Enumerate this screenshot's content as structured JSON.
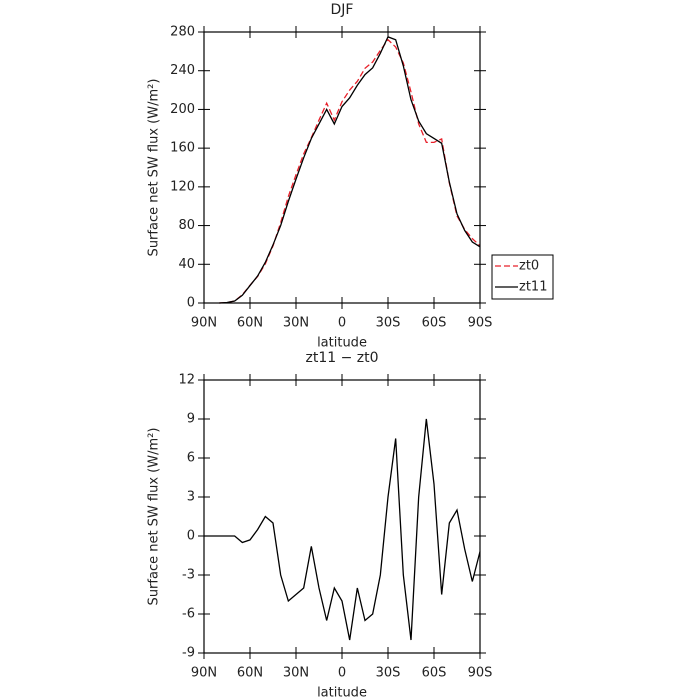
{
  "chart_data": [
    {
      "type": "line",
      "title": "DJF",
      "x_label": "latitude",
      "y_label": "Surface net SW flux (W/m²)",
      "x": [
        90,
        85,
        80,
        75,
        70,
        65,
        60,
        55,
        50,
        45,
        40,
        35,
        30,
        25,
        20,
        15,
        10,
        5,
        0,
        -5,
        -10,
        -15,
        -20,
        -25,
        -30,
        -35,
        -40,
        -45,
        -50,
        -55,
        -60,
        -65,
        -70,
        -75,
        -80,
        -85,
        -90
      ],
      "series": [
        {
          "name": "zt0",
          "color": "#e8202a",
          "dash": "dashed",
          "values": [
            null,
            null,
            0,
            0.5,
            2,
            8.5,
            18.3,
            27.5,
            40.5,
            59,
            83,
            110,
            132.5,
            154,
            170.8,
            189,
            206.5,
            189,
            208,
            220,
            229,
            242.5,
            249,
            261,
            272,
            264.5,
            248,
            218,
            185,
            166,
            166,
            169.5,
            124,
            90,
            76,
            66.5,
            59.2
          ]
        },
        {
          "name": "zt11",
          "color": "#000000",
          "dash": "solid",
          "values": [
            null,
            null,
            0,
            0.5,
            2,
            8,
            18,
            28,
            42,
            60,
            80,
            105,
            128,
            150,
            170,
            185,
            200,
            185,
            203,
            212,
            225,
            236,
            243,
            258,
            275,
            272,
            245,
            210,
            188,
            175,
            170,
            165,
            125,
            92,
            75,
            63,
            58
          ]
        }
      ],
      "xlim": [
        90,
        -90
      ],
      "xticks": [
        {
          "value": 90,
          "label": "90N"
        },
        {
          "value": 60,
          "label": "60N"
        },
        {
          "value": 30,
          "label": "30N"
        },
        0,
        {
          "value": -30,
          "label": "30S"
        },
        {
          "value": -60,
          "label": "60S"
        },
        {
          "value": -90,
          "label": "90S"
        }
      ],
      "ylim": [
        0,
        280
      ],
      "yticks": [
        0,
        40,
        80,
        120,
        160,
        200,
        240,
        280
      ],
      "legend": "right"
    },
    {
      "type": "line",
      "title": "zt11 − zt0",
      "x_label": "latitude",
      "y_label": "Surface net SW flux (W/m²)",
      "x": [
        90,
        85,
        80,
        75,
        70,
        65,
        60,
        55,
        50,
        45,
        40,
        35,
        30,
        25,
        20,
        15,
        10,
        5,
        0,
        -5,
        -10,
        -15,
        -20,
        -25,
        -30,
        -35,
        -40,
        -45,
        -50,
        -55,
        -60,
        -65,
        -70,
        -75,
        -80,
        -85,
        -90
      ],
      "series": [
        {
          "color": "#000000",
          "dash": "solid",
          "values": [
            0,
            0,
            0,
            0,
            0,
            -0.5,
            -0.3,
            0.5,
            1.5,
            1,
            -3,
            -5,
            -4.5,
            -4,
            -0.8,
            -4,
            -6.5,
            -4,
            -5,
            -8,
            -4,
            -6.5,
            -6,
            -3,
            3,
            7.5,
            -3,
            -8,
            3,
            9,
            4,
            -4.5,
            1,
            2,
            -1,
            -3.5,
            -1.2
          ]
        }
      ],
      "xlim": [
        90,
        -90
      ],
      "xticks": [
        {
          "value": 90,
          "label": "90N"
        },
        {
          "value": 60,
          "label": "60N"
        },
        {
          "value": 30,
          "label": "30N"
        },
        0,
        {
          "value": -30,
          "label": "30S"
        },
        {
          "value": -60,
          "label": "60S"
        },
        {
          "value": -90,
          "label": "90S"
        }
      ],
      "ylim": [
        -9,
        12
      ],
      "yticks": [
        -9,
        -6,
        -3,
        0,
        3,
        6,
        9,
        12
      ]
    }
  ]
}
